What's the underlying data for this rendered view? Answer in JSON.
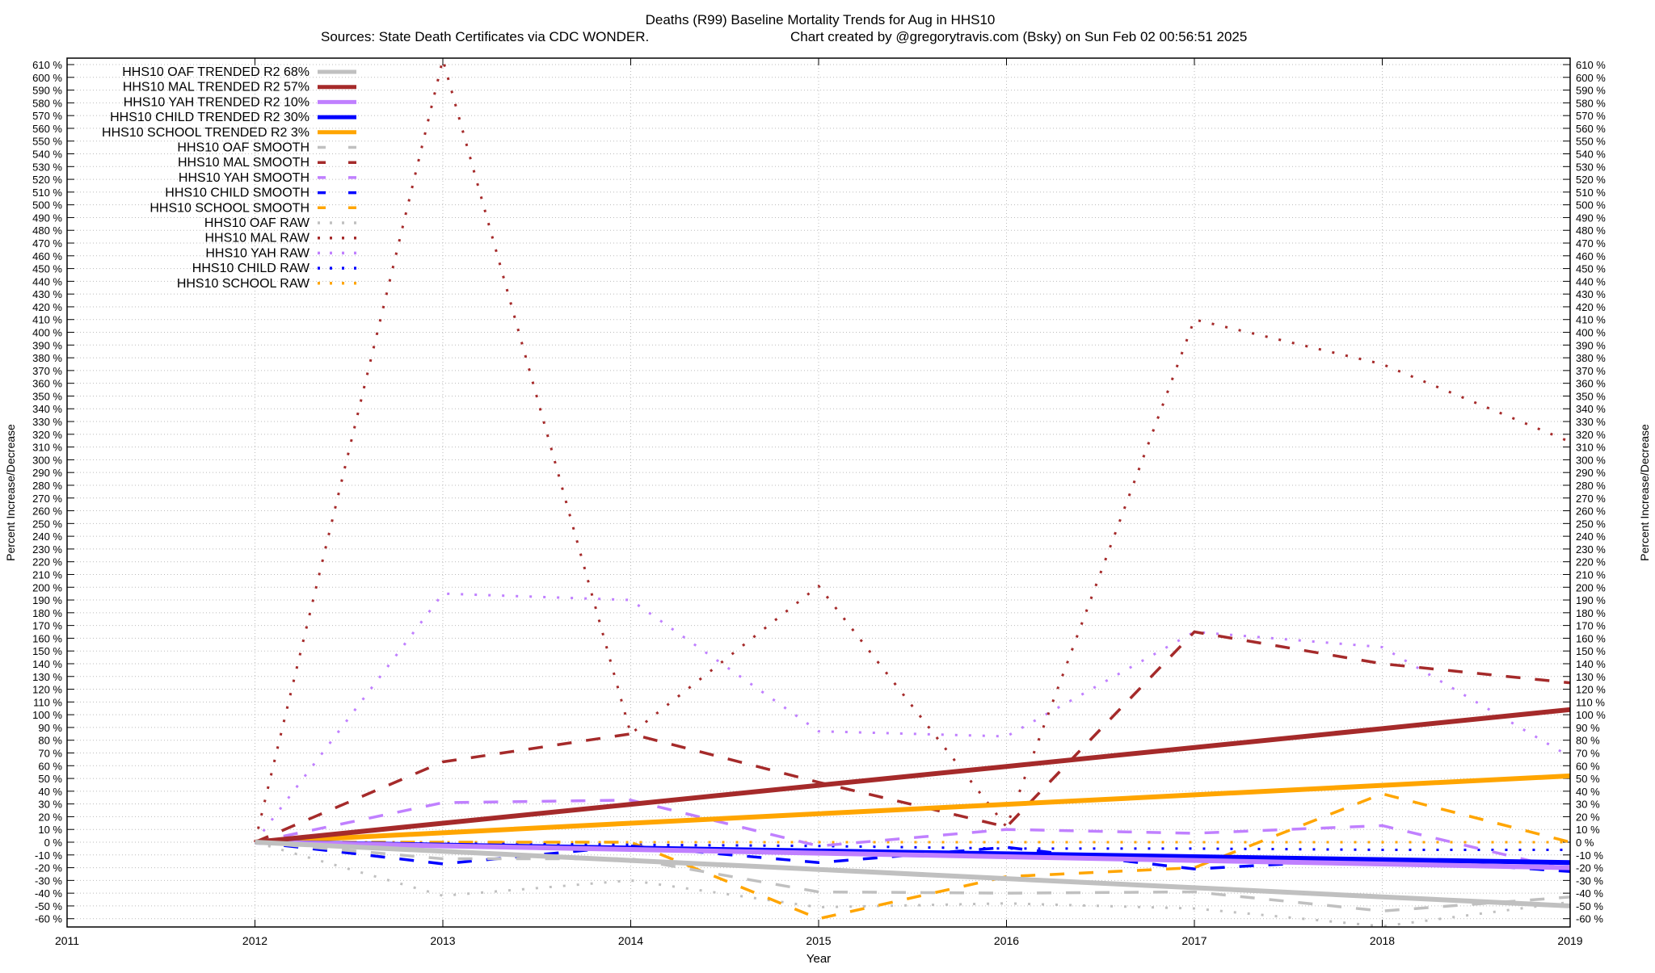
{
  "chart_data": {
    "type": "line",
    "title": "Deaths (R99)  Baseline Mortality Trends for Aug in HHS10",
    "subtitle_left": "Sources: State Death Certificates via CDC WONDER.",
    "subtitle_right": "Chart created by @gregorytravis.com (Bsky) on Sun Feb 02 00:56:51 2025",
    "xlabel": "Year",
    "ylabel": "Percent Increase/Decrease",
    "y2label": "Percent Increase/Decrease",
    "xlim": [
      2011,
      2019
    ],
    "ylim": [
      -66,
      615
    ],
    "x_ticks": [
      "2011",
      "2012",
      "2013",
      "2014",
      "2015",
      "2016",
      "2017",
      "2018",
      "2019"
    ],
    "y_tick_step": 10,
    "y_tick_range": [
      -60,
      610
    ],
    "y_tick_suffix": " %",
    "grid": true,
    "legend_position": "top-left",
    "x": [
      2012,
      2013,
      2014,
      2015,
      2016,
      2017,
      2018,
      2019
    ],
    "series": [
      {
        "name": "HHS10 OAF TRENDED R2  68%",
        "color": "#c0c0c0",
        "style": "solid",
        "values": [
          0,
          -7.1,
          -14.3,
          -21.4,
          -28.6,
          -35.7,
          -42.9,
          -50
        ]
      },
      {
        "name": "HHS10 MAL TRENDED R2  57%",
        "color": "#a52a2a",
        "style": "solid",
        "values": [
          0,
          14.9,
          29.7,
          44.6,
          59.4,
          74.3,
          89.1,
          104
        ]
      },
      {
        "name": "HHS10 YAH TRENDED R2  10%",
        "color": "#c080ff",
        "style": "solid",
        "values": [
          0,
          -2.9,
          -5.7,
          -8.6,
          -11.4,
          -14.3,
          -17.1,
          -20
        ]
      },
      {
        "name": "HHS10 CHILD TRENDED R2  30%",
        "color": "#0000ff",
        "style": "solid",
        "values": [
          0,
          -2.3,
          -4.6,
          -6.9,
          -9.1,
          -11.4,
          -13.7,
          -16
        ]
      },
      {
        "name": "HHS10 SCHOOL TRENDED R2  3%",
        "color": "#ffa500",
        "style": "solid",
        "values": [
          0,
          7.4,
          14.9,
          22.3,
          29.7,
          37.1,
          44.6,
          52
        ]
      },
      {
        "name": "HHS10 OAF SMOOTH",
        "color": "#c0c0c0",
        "style": "dash",
        "values": [
          0,
          -13,
          -13,
          -39,
          -40,
          -39,
          -54,
          -43
        ]
      },
      {
        "name": "HHS10 MAL SMOOTH",
        "color": "#a52a2a",
        "style": "dash",
        "values": [
          0,
          63,
          85,
          47,
          12,
          165,
          140,
          125
        ]
      },
      {
        "name": "HHS10 YAH SMOOTH",
        "color": "#c080ff",
        "style": "dash",
        "values": [
          0,
          31,
          33,
          -3,
          10,
          7,
          13,
          -22
        ]
      },
      {
        "name": "HHS10 CHILD SMOOTH",
        "color": "#0000ff",
        "style": "dash",
        "values": [
          0,
          -17,
          -3,
          -16,
          -4,
          -21,
          -13,
          -23
        ]
      },
      {
        "name": "HHS10 SCHOOL SMOOTH",
        "color": "#ffa500",
        "style": "dash",
        "values": [
          0,
          0,
          0,
          -60,
          -27,
          -20,
          38,
          0
        ]
      },
      {
        "name": "HHS10 OAF RAW",
        "color": "#c0c0c0",
        "style": "dot",
        "values": [
          0,
          -42,
          -30,
          -51,
          -48,
          -52,
          -66,
          -47
        ]
      },
      {
        "name": "HHS10 MAL RAW",
        "color": "#a52a2a",
        "style": "dot",
        "values": [
          0,
          614,
          85,
          201,
          12,
          410,
          375,
          314
        ]
      },
      {
        "name": "HHS10 YAH RAW",
        "color": "#c080ff",
        "style": "dot",
        "values": [
          0,
          195,
          190,
          87,
          83,
          165,
          153,
          67
        ]
      },
      {
        "name": "HHS10 CHILD RAW",
        "color": "#0000ff",
        "style": "dot",
        "values": [
          0,
          -1,
          -2,
          -3,
          -5,
          -5,
          -6,
          -6
        ]
      },
      {
        "name": "HHS10 SCHOOL RAW",
        "color": "#ffa500",
        "style": "dot",
        "values": [
          0,
          0,
          0,
          0,
          0,
          0,
          0,
          0
        ]
      }
    ]
  }
}
